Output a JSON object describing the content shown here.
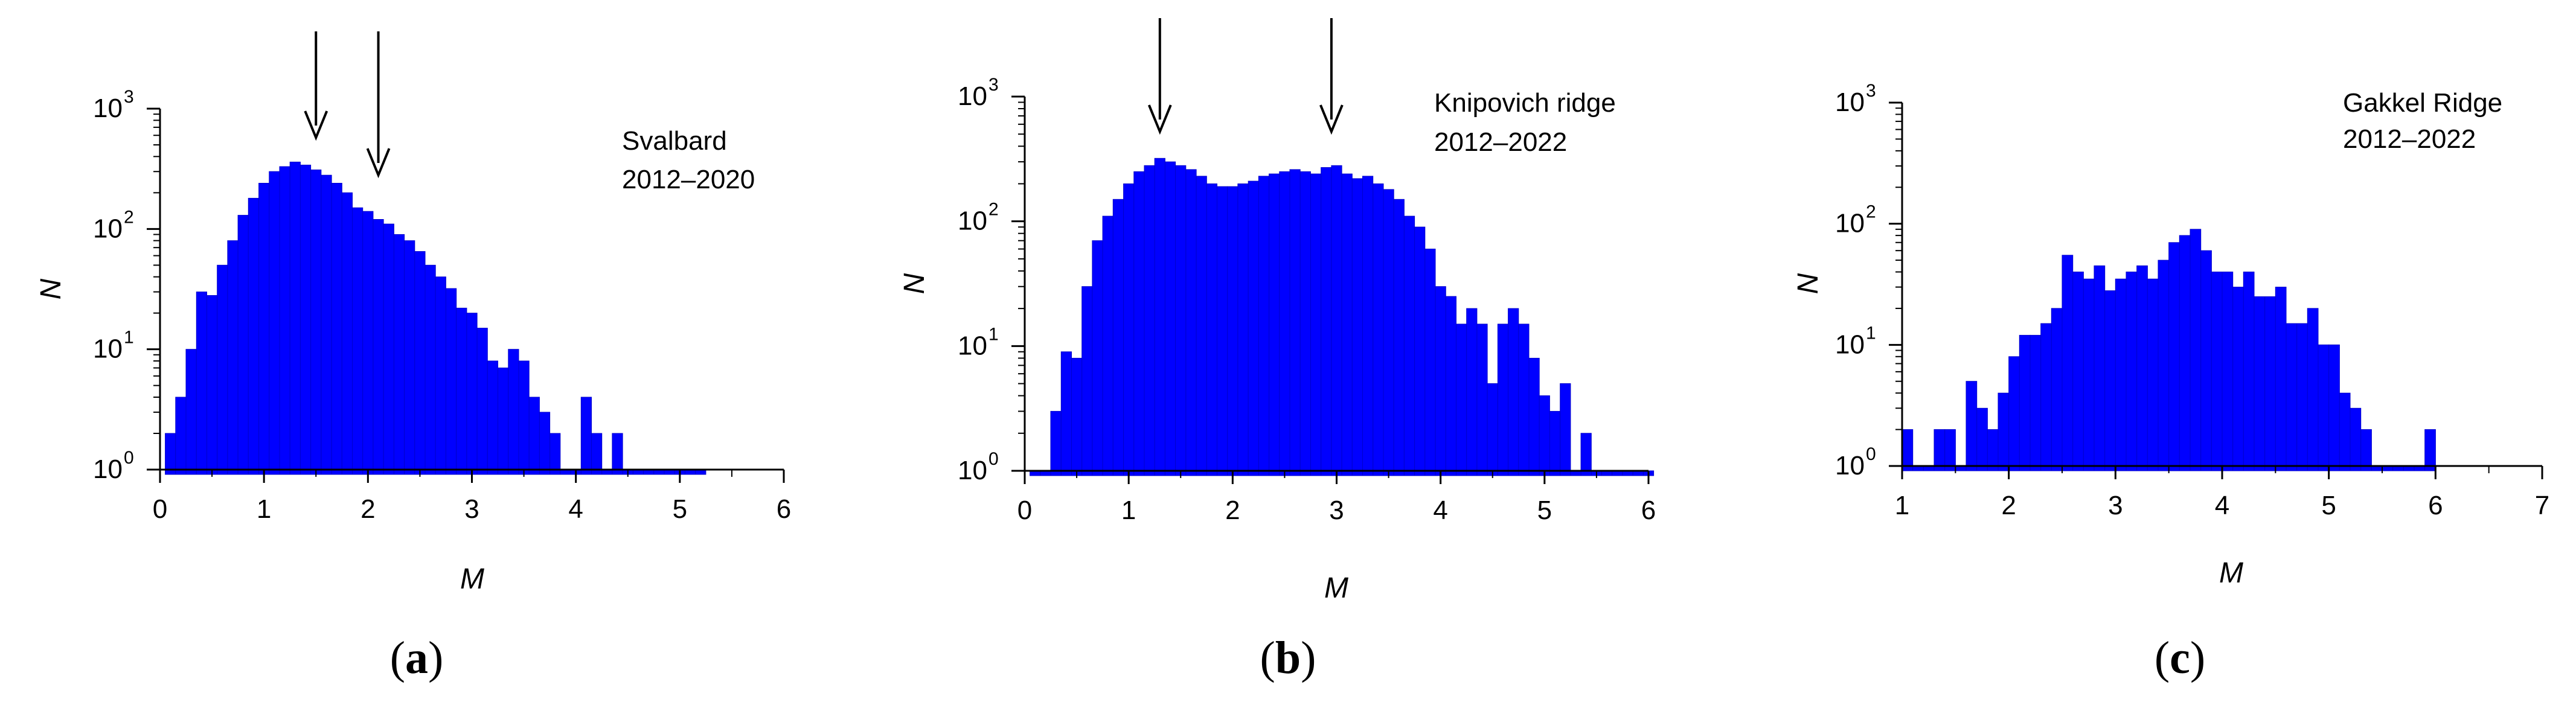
{
  "chart_data": [
    {
      "type": "bar",
      "panel_label": "a",
      "annotation": [
        "Svalbard",
        "2012–2020"
      ],
      "xlabel": "M",
      "ylabel": "N",
      "xlim": [
        0,
        6
      ],
      "ylim": [
        1,
        1000
      ],
      "yscale": "log",
      "xticks": [
        "0",
        "1",
        "2",
        "3",
        "4",
        "5",
        "6"
      ],
      "yticks": [
        {
          "base": "10",
          "exp": "0"
        },
        {
          "base": "10",
          "exp": "1"
        },
        {
          "base": "10",
          "exp": "2"
        },
        {
          "base": "10",
          "exp": "3"
        }
      ],
      "bar_width": 0.1,
      "arrow_markers": [
        1.5,
        2.1
      ],
      "bin_start": [
        0.05,
        0.15,
        0.25,
        0.35,
        0.45,
        0.55,
        0.65,
        0.75,
        0.85,
        0.95,
        1.05,
        1.15,
        1.25,
        1.35,
        1.45,
        1.55,
        1.65,
        1.75,
        1.85,
        1.95,
        2.05,
        2.15,
        2.25,
        2.35,
        2.45,
        2.55,
        2.65,
        2.75,
        2.85,
        2.95,
        3.05,
        3.15,
        3.25,
        3.35,
        3.45,
        3.55,
        3.65,
        3.75,
        3.85,
        3.95,
        4.05,
        4.15,
        4.25,
        4.35,
        4.45,
        4.55,
        4.65,
        4.75,
        4.85,
        4.95,
        5.05,
        5.15
      ],
      "values": [
        2,
        4,
        10,
        30,
        28,
        50,
        80,
        130,
        180,
        240,
        300,
        330,
        360,
        340,
        310,
        280,
        240,
        200,
        150,
        140,
        120,
        110,
        90,
        80,
        65,
        50,
        40,
        32,
        22,
        20,
        15,
        8,
        7,
        10,
        8,
        4,
        3,
        2,
        1,
        1,
        4,
        2,
        1,
        2,
        1,
        1,
        1,
        1,
        1,
        1,
        1,
        1
      ]
    },
    {
      "type": "bar",
      "panel_label": "b",
      "annotation": [
        "Knipovich ridge",
        "2012–2022"
      ],
      "xlabel": "M",
      "ylabel": "N",
      "xlim": [
        0,
        6
      ],
      "ylim": [
        1,
        1000
      ],
      "yscale": "log",
      "xticks": [
        "0",
        "1",
        "2",
        "3",
        "4",
        "5",
        "6"
      ],
      "yticks": [
        {
          "base": "10",
          "exp": "0"
        },
        {
          "base": "10",
          "exp": "1"
        },
        {
          "base": "10",
          "exp": "2"
        },
        {
          "base": "10",
          "exp": "3"
        }
      ],
      "bar_width": 0.1,
      "arrow_markers": [
        1.3,
        2.95
      ],
      "bin_start": [
        0.05,
        0.15,
        0.25,
        0.35,
        0.45,
        0.55,
        0.65,
        0.75,
        0.85,
        0.95,
        1.05,
        1.15,
        1.25,
        1.35,
        1.45,
        1.55,
        1.65,
        1.75,
        1.85,
        1.95,
        2.05,
        2.15,
        2.25,
        2.35,
        2.45,
        2.55,
        2.65,
        2.75,
        2.85,
        2.95,
        3.05,
        3.15,
        3.25,
        3.35,
        3.45,
        3.55,
        3.65,
        3.75,
        3.85,
        3.95,
        4.05,
        4.15,
        4.25,
        4.35,
        4.45,
        4.55,
        4.65,
        4.75,
        4.85,
        4.95,
        5.05,
        5.15,
        5.25,
        5.35,
        5.45,
        5.55,
        5.65,
        5.75,
        5.85,
        5.95
      ],
      "values": [
        1,
        1,
        3,
        9,
        8,
        30,
        70,
        110,
        150,
        200,
        250,
        280,
        320,
        300,
        280,
        260,
        230,
        200,
        190,
        190,
        200,
        210,
        230,
        240,
        250,
        260,
        250,
        240,
        270,
        280,
        240,
        220,
        230,
        200,
        180,
        150,
        110,
        90,
        60,
        30,
        25,
        15,
        20,
        15,
        5,
        15,
        20,
        15,
        8,
        4,
        3,
        5,
        1,
        2,
        1,
        1,
        1,
        1,
        1,
        1
      ]
    },
    {
      "type": "bar",
      "panel_label": "c",
      "annotation": [
        "Gakkel Ridge",
        "2012–2022"
      ],
      "xlabel": "M",
      "ylabel": "N",
      "xlim": [
        1,
        7
      ],
      "ylim": [
        1,
        1000
      ],
      "yscale": "log",
      "xticks": [
        "1",
        "2",
        "3",
        "4",
        "5",
        "6",
        "7"
      ],
      "yticks": [
        {
          "base": "10",
          "exp": "0"
        },
        {
          "base": "10",
          "exp": "1"
        },
        {
          "base": "10",
          "exp": "2"
        },
        {
          "base": "10",
          "exp": "3"
        }
      ],
      "bar_width": 0.1,
      "arrow_markers": [],
      "bin_start": [
        1.0,
        1.1,
        1.2,
        1.3,
        1.4,
        1.5,
        1.6,
        1.7,
        1.8,
        1.9,
        2.0,
        2.1,
        2.2,
        2.3,
        2.4,
        2.5,
        2.6,
        2.7,
        2.8,
        2.9,
        3.0,
        3.1,
        3.2,
        3.3,
        3.4,
        3.5,
        3.6,
        3.7,
        3.8,
        3.9,
        4.0,
        4.1,
        4.2,
        4.3,
        4.4,
        4.5,
        4.6,
        4.7,
        4.8,
        4.9,
        5.0,
        5.1,
        5.2,
        5.3,
        5.4,
        5.5,
        5.6,
        5.7,
        5.8,
        5.9
      ],
      "values": [
        2,
        1,
        1,
        2,
        2,
        1,
        5,
        3,
        2,
        4,
        8,
        12,
        12,
        15,
        20,
        55,
        40,
        35,
        45,
        28,
        35,
        40,
        45,
        35,
        50,
        70,
        80,
        90,
        60,
        40,
        40,
        30,
        40,
        25,
        25,
        30,
        15,
        15,
        20,
        10,
        10,
        4,
        3,
        2,
        1,
        1,
        1,
        1,
        1,
        2
      ]
    }
  ],
  "colors": {
    "bars": "#0000ff",
    "bar_edge": "#0000cc",
    "axes": "#000000",
    "background": "#ffffff"
  }
}
